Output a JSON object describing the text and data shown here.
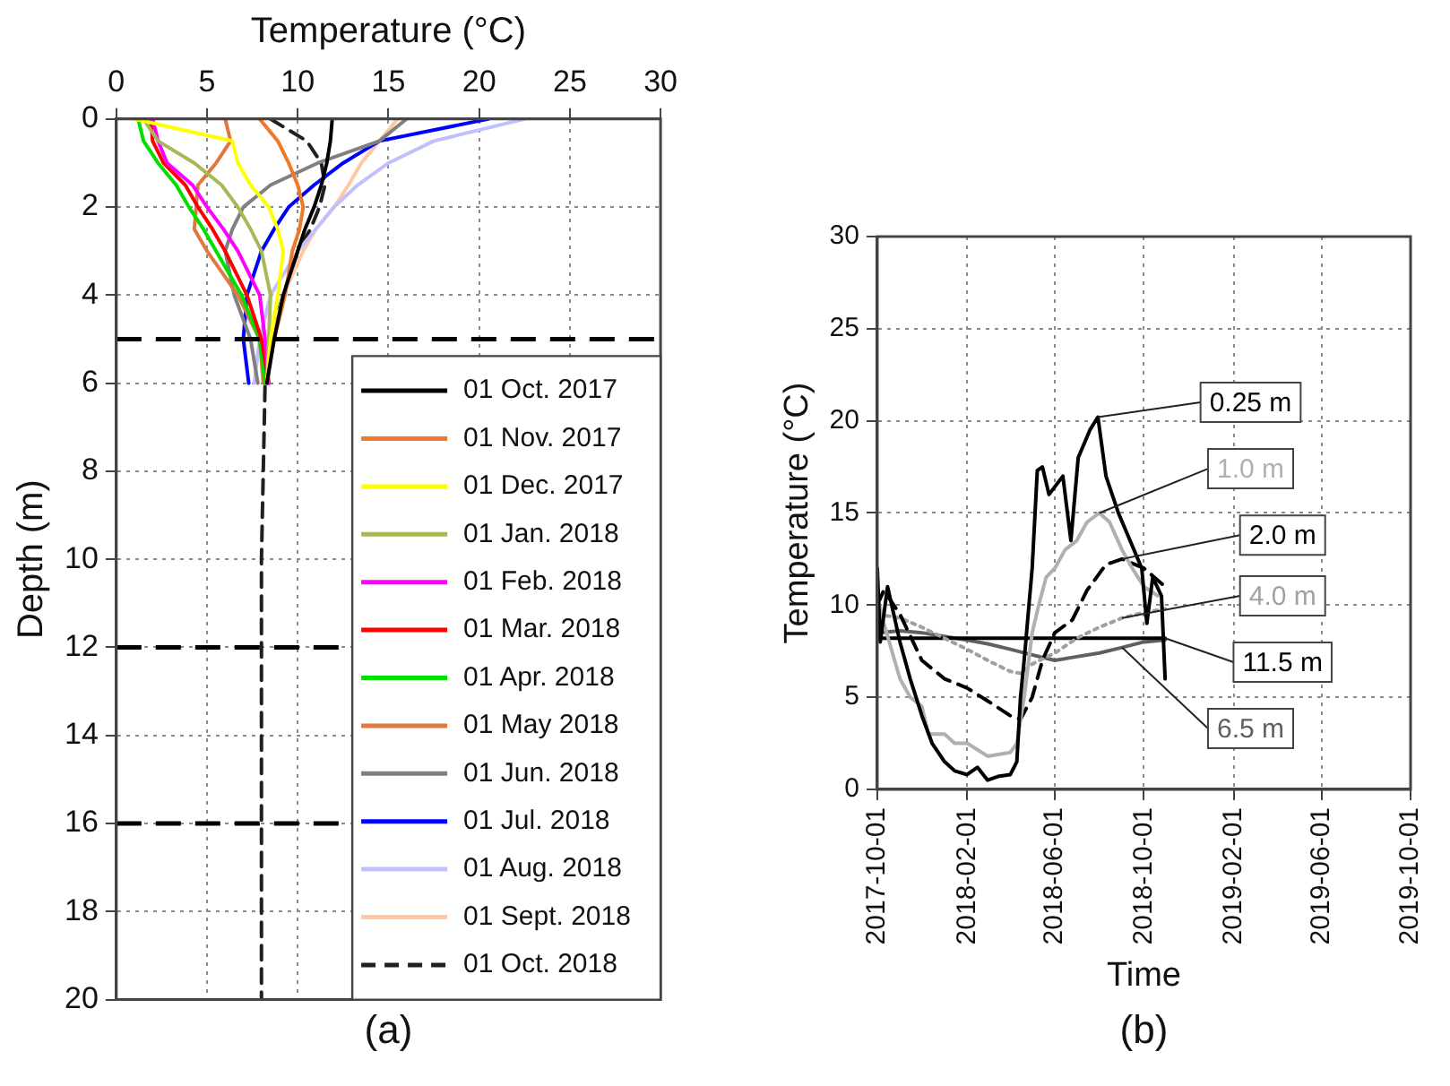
{
  "chart_data": [
    {
      "type": "line",
      "xlabel": "Temperature (°C)",
      "ylabel": "Depth (m)",
      "xlim": [
        0,
        30
      ],
      "xticks": [
        0,
        5,
        10,
        15,
        20,
        25,
        30
      ],
      "ylim": [
        20,
        0
      ],
      "yticks": [
        0,
        2,
        4,
        6,
        8,
        10,
        12,
        14,
        16,
        18,
        20
      ],
      "grid": true,
      "legend": "bottom right",
      "annotations": [
        "(a)"
      ],
      "ref_lines": [
        {
          "axis": "y",
          "value": 5,
          "color": "#000000",
          "line_style": "dashed"
        },
        {
          "axis": "y",
          "value": 12,
          "color": "#000000",
          "line_style": "dashed"
        },
        {
          "axis": "y",
          "value": 16,
          "color": "#000000",
          "line_style": "dashed"
        }
      ],
      "series": [
        {
          "name": "01 Oct. 2017",
          "color": "#000000",
          "x": [
            11.9,
            11.8,
            11.6,
            11.3,
            10.9,
            10.4,
            10,
            9.2,
            8.7,
            8.3
          ],
          "values": [
            0,
            0.5,
            1,
            1.5,
            2,
            2.5,
            3,
            4,
            5,
            6
          ]
        },
        {
          "name": "01 Nov. 2017",
          "color": "#f07828",
          "x": [
            7.9,
            8.9,
            9.5,
            10,
            10.3,
            10.1,
            9.7,
            9.3,
            8.7,
            8.3
          ],
          "values": [
            0,
            0.5,
            1,
            1.5,
            2,
            2.5,
            3,
            4,
            5,
            6
          ]
        },
        {
          "name": "01 Dec. 2017",
          "color": "#ffff00",
          "x": [
            1.0,
            6.4,
            6.7,
            7.4,
            8.4,
            8.9,
            9.2,
            8.9,
            8.5,
            8.3
          ],
          "values": [
            0,
            0.5,
            1,
            1.5,
            2,
            2.5,
            3,
            4,
            5,
            6
          ]
        },
        {
          "name": "01 Jan. 2018",
          "color": "#a8b858",
          "x": [
            1.5,
            2.3,
            4.3,
            5.8,
            6.7,
            7.4,
            8.0,
            8.5,
            8.4,
            8.3
          ],
          "values": [
            0,
            0.5,
            1,
            1.5,
            2,
            2.5,
            3,
            4,
            5,
            6
          ]
        },
        {
          "name": "01 Feb. 2018",
          "color": "#ff00ff",
          "x": [
            2.0,
            2.3,
            2.8,
            4.2,
            5.0,
            5.9,
            6.7,
            7.9,
            8.2,
            8.4
          ],
          "values": [
            0,
            0.5,
            1,
            1.5,
            2,
            2.5,
            3,
            4,
            5,
            6
          ]
        },
        {
          "name": "01 Mar. 2018",
          "color": "#ff0000",
          "x": [
            1.9,
            2.0,
            2.6,
            3.8,
            4.5,
            5.3,
            6.0,
            7.2,
            8.0,
            8.4
          ],
          "values": [
            0,
            0.5,
            1,
            1.5,
            2,
            2.5,
            3,
            4,
            5,
            6
          ]
        },
        {
          "name": "01 Apr. 2018",
          "color": "#00e000",
          "x": [
            1.2,
            1.5,
            2.3,
            3.3,
            4.0,
            4.8,
            5.5,
            6.9,
            7.9,
            8.2
          ],
          "values": [
            0,
            0.5,
            1,
            1.5,
            2,
            2.5,
            3,
            4,
            5,
            6
          ]
        },
        {
          "name": "01 May 2018",
          "color": "#e07840",
          "x": [
            6.0,
            6.3,
            5.5,
            4.5,
            4.4,
            4.3,
            5.0,
            6.7,
            7.9,
            8.1
          ],
          "values": [
            0,
            0.5,
            1,
            1.5,
            2,
            2.5,
            3,
            4,
            5,
            6
          ]
        },
        {
          "name": "01 Jun. 2018",
          "color": "#808080",
          "x": [
            16,
            14.5,
            11.1,
            8.5,
            7.0,
            6.4,
            6.0,
            6.5,
            7.4,
            7.8
          ],
          "values": [
            0,
            0.5,
            1,
            1.5,
            2,
            2.5,
            3,
            4,
            5,
            6
          ]
        },
        {
          "name": "01 Jul. 2018",
          "color": "#0000ff",
          "x": [
            20.5,
            14.5,
            12.5,
            10.9,
            9.5,
            8.7,
            8.0,
            7.2,
            7.0,
            7.3
          ],
          "values": [
            0,
            0.5,
            1,
            1.5,
            2,
            2.5,
            3,
            4,
            5,
            6
          ]
        },
        {
          "name": "01 Aug. 2018",
          "color": "#c0c0ff",
          "x": [
            22.5,
            17.5,
            15,
            13.3,
            12,
            11,
            10,
            8.5,
            7.9,
            7.6
          ],
          "values": [
            0,
            0.5,
            1,
            1.5,
            2,
            2.5,
            3,
            4,
            5,
            6
          ]
        },
        {
          "name": "01 Sept. 2018",
          "color": "#ffc8a0",
          "x": [
            15.5,
            14.5,
            13.5,
            12.8,
            12,
            11,
            10.3,
            9.2,
            8.6,
            8.2
          ],
          "values": [
            0,
            0.5,
            1,
            1.5,
            2,
            2.5,
            3,
            4,
            5,
            6
          ]
        },
        {
          "name": "01 Oct. 2018",
          "color": "#202020",
          "line_style": "dashed",
          "x": [
            8.5,
            10.5,
            11.3,
            11.5,
            11.2,
            10.7,
            10,
            9.2,
            8.5,
            8.2,
            8.1,
            8.0,
            8.0,
            8.0,
            8.0,
            8.0,
            8.0
          ],
          "values": [
            0,
            0.5,
            1,
            1.5,
            2,
            2.5,
            3,
            4,
            5,
            6,
            8,
            10,
            12,
            14,
            16,
            18,
            20
          ]
        }
      ]
    },
    {
      "type": "line",
      "xlabel": "Time",
      "ylabel": "Temperature (°C)",
      "xlim": [
        "2017-10-01",
        "2019-10-01"
      ],
      "xticks": [
        "2017-10-01",
        "2018-02-01",
        "2018-06-01",
        "2018-10-01",
        "2019-02-01",
        "2019-06-01",
        "2019-10-01"
      ],
      "ylim": [
        0,
        30
      ],
      "yticks": [
        0,
        5,
        10,
        15,
        20,
        25,
        30
      ],
      "grid": true,
      "annotations": [
        "(b)"
      ],
      "series": [
        {
          "name": "0.25 m",
          "color": "#000000",
          "x": [
            "2017-10-01",
            "2017-10-05",
            "2017-10-15",
            "2017-11-01",
            "2017-11-15",
            "2017-12-01",
            "2017-12-15",
            "2018-01-01",
            "2018-01-15",
            "2018-02-01",
            "2018-02-15",
            "2018-03-01",
            "2018-03-15",
            "2018-04-01",
            "2018-04-10",
            "2018-04-15",
            "2018-04-20",
            "2018-05-01",
            "2018-05-08",
            "2018-05-15",
            "2018-05-24",
            "2018-06-12",
            "2018-06-23",
            "2018-07-03",
            "2018-07-19",
            "2018-07-30",
            "2018-08-10",
            "2018-08-27",
            "2018-09-12",
            "2018-09-28",
            "2018-10-05",
            "2018-10-13",
            "2018-10-25",
            "2018-10-30"
          ],
          "values": [
            12,
            8,
            11,
            8,
            6,
            4,
            2.5,
            1.5,
            1,
            0.8,
            1.2,
            0.5,
            0.7,
            0.8,
            1.5,
            5,
            7,
            12,
            17.3,
            17.5,
            16,
            17,
            13.5,
            18,
            19.5,
            20.2,
            17,
            15,
            13.5,
            12,
            9,
            11.5,
            10.5,
            6
          ]
        },
        {
          "name": "1.0 m",
          "color": "#b0b0b0",
          "x": [
            "2017-10-01",
            "2017-10-10",
            "2017-11-01",
            "2017-11-15",
            "2017-12-01",
            "2017-12-10",
            "2018-01-01",
            "2018-01-15",
            "2018-02-01",
            "2018-03-01",
            "2018-04-01",
            "2018-04-10",
            "2018-04-20",
            "2018-05-01",
            "2018-05-10",
            "2018-05-20",
            "2018-06-01",
            "2018-06-15",
            "2018-07-01",
            "2018-07-15",
            "2018-08-01",
            "2018-08-15",
            "2018-09-01",
            "2018-09-15",
            "2018-10-01",
            "2018-10-20"
          ],
          "values": [
            10.5,
            9,
            6,
            5,
            4.5,
            3,
            3,
            2.5,
            2.5,
            1.8,
            2,
            2.5,
            5,
            8.5,
            10,
            11.5,
            12,
            13,
            13.5,
            14.5,
            15,
            14.5,
            13,
            12,
            11,
            10.5
          ]
        },
        {
          "name": "2.0 m",
          "color": "#000000",
          "line_style": "dashed",
          "x": [
            "2017-10-01",
            "2017-10-10",
            "2017-11-01",
            "2017-12-01",
            "2018-01-01",
            "2018-02-01",
            "2018-03-01",
            "2018-04-01",
            "2018-04-15",
            "2018-05-01",
            "2018-05-15",
            "2018-06-01",
            "2018-06-25",
            "2018-07-15",
            "2018-08-10",
            "2018-09-01",
            "2018-10-01",
            "2018-10-30"
          ],
          "values": [
            10,
            10.8,
            9.5,
            7,
            6,
            5.5,
            4.8,
            4,
            3.8,
            5,
            7,
            8.5,
            9.2,
            10.8,
            12.2,
            12.5,
            12,
            11
          ]
        },
        {
          "name": "4.0 m",
          "color": "#a0a0a0",
          "line_style": "dotted",
          "x": [
            "2017-10-01",
            "2017-11-01",
            "2017-12-01",
            "2018-01-01",
            "2018-02-01",
            "2018-03-01",
            "2018-04-01",
            "2018-04-15",
            "2018-05-01",
            "2018-06-01",
            "2018-07-01",
            "2018-08-01",
            "2018-09-01",
            "2018-10-01",
            "2018-10-30"
          ],
          "values": [
            9.5,
            9.3,
            8.8,
            8.2,
            7.6,
            7,
            6.4,
            6.3,
            6.8,
            7.4,
            8.2,
            8.8,
            9.3,
            9.6,
            9.8
          ]
        },
        {
          "name": "11.5 m",
          "color": "#000000",
          "x": [
            "2017-10-01",
            "2018-04-01",
            "2018-10-30"
          ],
          "values": [
            8.2,
            8.2,
            8.2
          ]
        },
        {
          "name": "6.5 m",
          "color": "#606060",
          "x": [
            "2017-10-01",
            "2017-11-01",
            "2017-12-01",
            "2018-01-01",
            "2018-02-01",
            "2018-03-01",
            "2018-04-01",
            "2018-05-01",
            "2018-06-01",
            "2018-07-01",
            "2018-08-01",
            "2018-09-01",
            "2018-10-01",
            "2018-10-30"
          ],
          "values": [
            8.5,
            8.6,
            8.5,
            8.3,
            8.1,
            7.9,
            7.6,
            7.3,
            7,
            7.2,
            7.4,
            7.7,
            8,
            8.1
          ]
        }
      ]
    }
  ]
}
